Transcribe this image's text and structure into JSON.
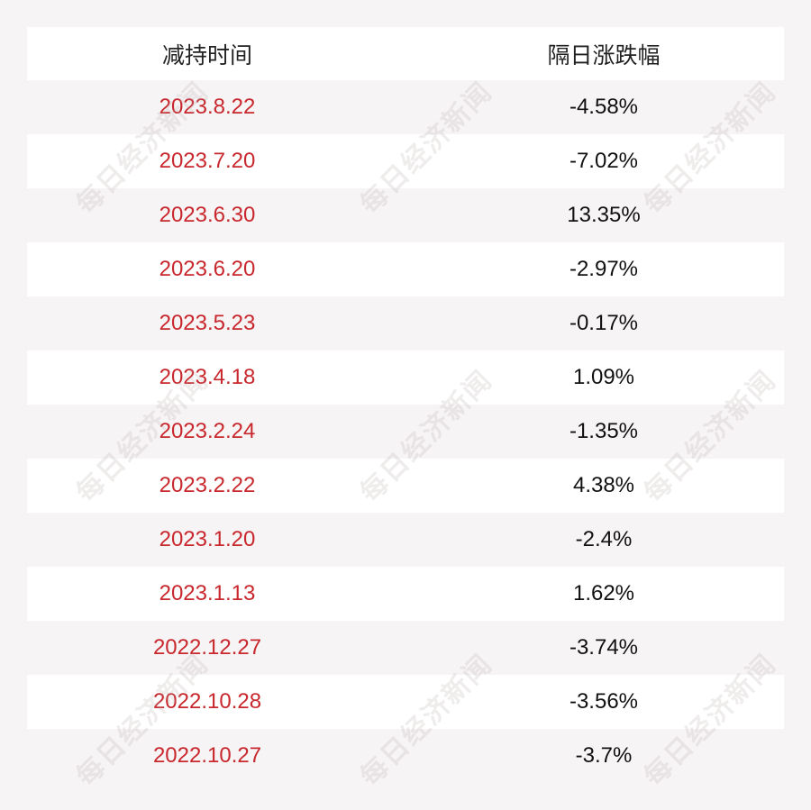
{
  "table": {
    "headers": [
      "减持时间",
      "隔日涨跌幅"
    ],
    "rows": [
      {
        "date": "2023.8.22",
        "change": "-4.58%"
      },
      {
        "date": "2023.7.20",
        "change": "-7.02%"
      },
      {
        "date": "2023.6.30",
        "change": "13.35%"
      },
      {
        "date": "2023.6.20",
        "change": "-2.97%"
      },
      {
        "date": "2023.5.23",
        "change": "-0.17%"
      },
      {
        "date": "2023.4.18",
        "change": "1.09%"
      },
      {
        "date": "2023.2.24",
        "change": "-1.35%"
      },
      {
        "date": "2023.2.22",
        "change": "4.38%"
      },
      {
        "date": "2023.1.20",
        "change": "-2.4%"
      },
      {
        "date": "2023.1.13",
        "change": "1.62%"
      },
      {
        "date": "2022.12.27",
        "change": "-3.74%"
      },
      {
        "date": "2022.10.28",
        "change": "-3.56%"
      },
      {
        "date": "2022.10.27",
        "change": "-3.7%"
      }
    ]
  },
  "watermark": {
    "text": "每日经济新闻"
  },
  "colors": {
    "date": "#c8282d",
    "value": "#111111",
    "background": "#f7f4f5",
    "row_alt": "#ffffff"
  }
}
